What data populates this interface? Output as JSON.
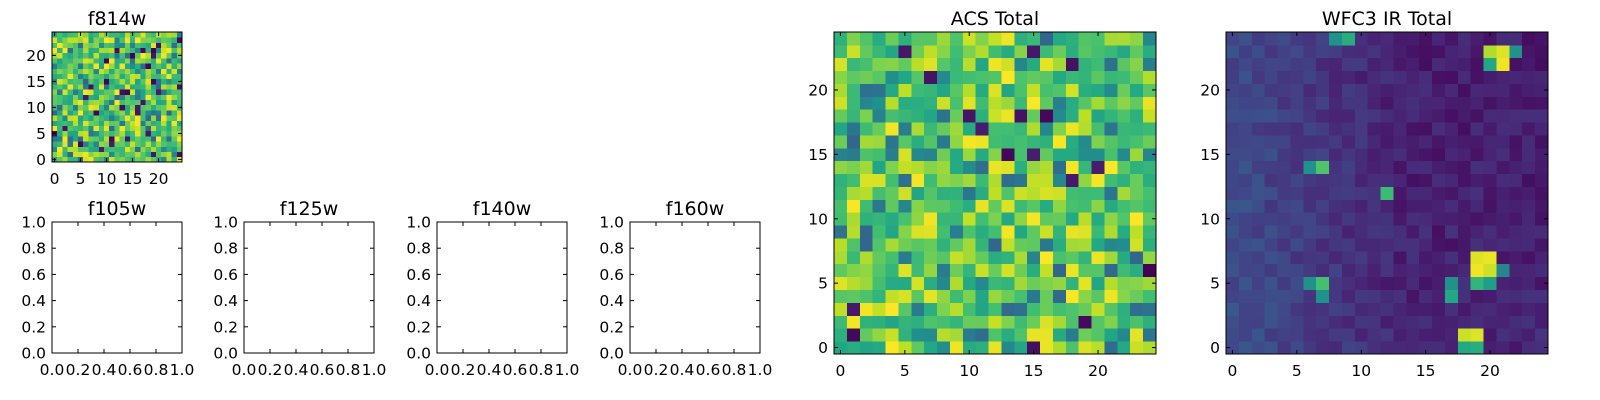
{
  "chart_data": [
    {
      "id": "f814w",
      "type": "heatmap",
      "title": "f814w",
      "colormap": "viridis",
      "grid": false,
      "xlim": [
        -0.5,
        24.5
      ],
      "ylim": [
        -0.5,
        24.5
      ],
      "xticks": [
        0,
        5,
        10,
        15,
        20
      ],
      "xtick_labels": [
        "0",
        "5",
        "10",
        "15",
        "20"
      ],
      "yticks": [
        0,
        5,
        10,
        15,
        20
      ],
      "ytick_labels": [
        "0",
        "5",
        "10",
        "15",
        "20"
      ],
      "nx": 25,
      "ny": 25,
      "seed": 814,
      "pattern": "noise",
      "vmin": 0,
      "vmax": 1
    },
    {
      "id": "f105w",
      "type": "scatter",
      "title": "f105w",
      "grid": false,
      "xlim": [
        0,
        1
      ],
      "ylim": [
        0,
        1
      ],
      "xtick_labels": [
        "0.0",
        "0.2",
        "0.4",
        "0.6",
        "0.8",
        "1.0"
      ],
      "ytick_labels": [
        "0.0",
        "0.2",
        "0.4",
        "0.6",
        "0.8",
        "1.0"
      ],
      "x": [],
      "y": []
    },
    {
      "id": "f125w",
      "type": "scatter",
      "title": "f125w",
      "grid": false,
      "xlim": [
        0,
        1
      ],
      "ylim": [
        0,
        1
      ],
      "xtick_labels": [
        "0.0",
        "0.2",
        "0.4",
        "0.6",
        "0.8",
        "1.0"
      ],
      "ytick_labels": [
        "0.0",
        "0.2",
        "0.4",
        "0.6",
        "0.8",
        "1.0"
      ],
      "x": [],
      "y": []
    },
    {
      "id": "f140w",
      "type": "scatter",
      "title": "f140w",
      "grid": false,
      "xlim": [
        0,
        1
      ],
      "ylim": [
        0,
        1
      ],
      "xtick_labels": [
        "0.0",
        "0.2",
        "0.4",
        "0.6",
        "0.8",
        "1.0"
      ],
      "ytick_labels": [
        "0.0",
        "0.2",
        "0.4",
        "0.6",
        "0.8",
        "1.0"
      ],
      "x": [],
      "y": []
    },
    {
      "id": "f160w",
      "type": "scatter",
      "title": "f160w",
      "grid": false,
      "xlim": [
        0,
        1
      ],
      "ylim": [
        0,
        1
      ],
      "xtick_labels": [
        "0.0",
        "0.2",
        "0.4",
        "0.6",
        "0.8",
        "1.0"
      ],
      "ytick_labels": [
        "0.0",
        "0.2",
        "0.4",
        "0.6",
        "0.8",
        "1.0"
      ],
      "x": [],
      "y": []
    },
    {
      "id": "acs",
      "type": "heatmap",
      "title": "ACS Total",
      "colormap": "viridis",
      "grid": false,
      "xlim": [
        -0.5,
        24.5
      ],
      "ylim": [
        -0.5,
        24.5
      ],
      "xticks": [
        0,
        5,
        10,
        15,
        20
      ],
      "xtick_labels": [
        "0",
        "5",
        "10",
        "15",
        "20"
      ],
      "yticks": [
        0,
        5,
        10,
        15,
        20
      ],
      "ytick_labels": [
        "0",
        "5",
        "10",
        "15",
        "20"
      ],
      "nx": 25,
      "ny": 25,
      "seed": 42,
      "pattern": "noise",
      "vmin": 0,
      "vmax": 1
    },
    {
      "id": "wfc3",
      "type": "heatmap",
      "title": "WFC3 IR Total",
      "colormap": "viridis",
      "grid": false,
      "xlim": [
        -0.5,
        24.5
      ],
      "ylim": [
        -0.5,
        24.5
      ],
      "xticks": [
        0,
        5,
        10,
        15,
        20
      ],
      "xtick_labels": [
        "0",
        "5",
        "10",
        "15",
        "20"
      ],
      "yticks": [
        0,
        5,
        10,
        15,
        20
      ],
      "ytick_labels": [
        "0",
        "5",
        "10",
        "15",
        "20"
      ],
      "nx": 25,
      "ny": 25,
      "seed": 7,
      "pattern": "background",
      "vmin": 0,
      "vmax": 1,
      "hot_pixels": [
        {
          "x": 20,
          "y": 23,
          "v": 0.88
        },
        {
          "x": 21,
          "y": 23,
          "v": 0.95
        },
        {
          "x": 21,
          "y": 22,
          "v": 0.98
        },
        {
          "x": 22,
          "y": 23,
          "v": 0.5
        },
        {
          "x": 20,
          "y": 22,
          "v": 0.6
        },
        {
          "x": 8,
          "y": 24,
          "v": 0.5
        },
        {
          "x": 9,
          "y": 24,
          "v": 0.62
        },
        {
          "x": 6,
          "y": 14,
          "v": 0.5
        },
        {
          "x": 7,
          "y": 14,
          "v": 0.72
        },
        {
          "x": 12,
          "y": 12,
          "v": 0.68
        },
        {
          "x": 19,
          "y": 7,
          "v": 0.95
        },
        {
          "x": 20,
          "y": 7,
          "v": 0.97
        },
        {
          "x": 19,
          "y": 6,
          "v": 0.98
        },
        {
          "x": 20,
          "y": 6,
          "v": 0.92
        },
        {
          "x": 19,
          "y": 5,
          "v": 0.65
        },
        {
          "x": 20,
          "y": 5,
          "v": 0.55
        },
        {
          "x": 21,
          "y": 6,
          "v": 0.45
        },
        {
          "x": 6,
          "y": 5,
          "v": 0.5
        },
        {
          "x": 7,
          "y": 5,
          "v": 0.7
        },
        {
          "x": 7,
          "y": 4,
          "v": 0.5
        },
        {
          "x": 17,
          "y": 5,
          "v": 0.5
        },
        {
          "x": 17,
          "y": 4,
          "v": 0.6
        },
        {
          "x": 18,
          "y": 1,
          "v": 0.92
        },
        {
          "x": 19,
          "y": 1,
          "v": 0.95
        },
        {
          "x": 18,
          "y": 0,
          "v": 0.6
        },
        {
          "x": 19,
          "y": 0,
          "v": 0.62
        }
      ]
    }
  ]
}
